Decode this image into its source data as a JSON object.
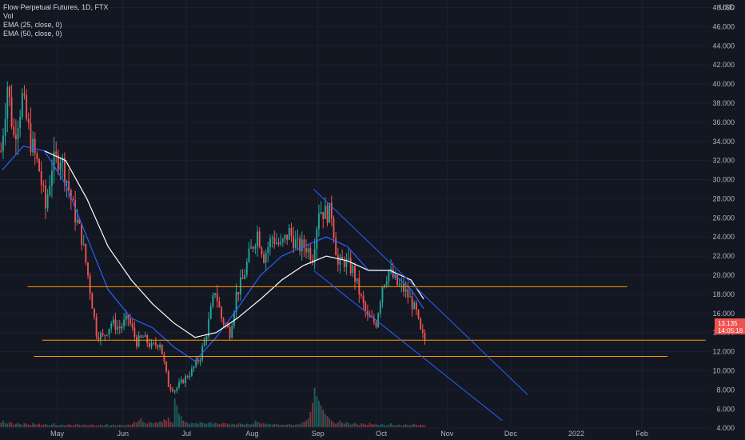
{
  "legend": {
    "title": "Flow Perpetual Futures, 1D, FTX",
    "vol": "Vol",
    "ema1": "EMA (25, close, 0)",
    "ema2": "EMA (50, close, 0)"
  },
  "colors": {
    "background": "#131722",
    "up": "#26a69a",
    "down": "#ef5350",
    "ema_fast": "#2962ff",
    "ema_slow": "#ffffff",
    "channel": "#2962ff",
    "level": "#ff9800",
    "axis_text": "#b2b5be"
  },
  "price_tag": {
    "price": "13.135",
    "countdown": "14:05:18"
  },
  "chart_data": {
    "type": "candlestick",
    "title": "Flow Perpetual Futures, 1D, FTX",
    "y_axis": {
      "unit": "USD",
      "range": [
        2.8,
        48.0
      ],
      "ticks": [
        "48.000",
        "46.000",
        "44.000",
        "42.000",
        "40.000",
        "38.000",
        "36.000",
        "34.000",
        "32.000",
        "30.000",
        "28.000",
        "26.000",
        "24.000",
        "22.000",
        "20.000",
        "18.000",
        "16.000",
        "14.000",
        "12.000",
        "10.000",
        "8.000",
        "6.000",
        "4.000"
      ]
    },
    "x_axis": {
      "range": [
        "2021-04-04",
        "2022-03-05"
      ],
      "ticks": [
        {
          "label": "May",
          "date": "2021-05-01"
        },
        {
          "label": "Jun",
          "date": "2021-06-01"
        },
        {
          "label": "Jul",
          "date": "2021-07-01"
        },
        {
          "label": "Aug",
          "date": "2021-08-01"
        },
        {
          "label": "Sep",
          "date": "2021-09-01"
        },
        {
          "label": "Oct",
          "date": "2021-10-01"
        },
        {
          "label": "Nov",
          "date": "2021-11-01"
        },
        {
          "label": "Dec",
          "date": "2021-12-01"
        },
        {
          "label": "2022",
          "date": "2022-01-01"
        },
        {
          "label": "Feb",
          "date": "2022-02-01"
        }
      ]
    },
    "close_path": [
      [
        "2021-04-04",
        33.0
      ],
      [
        "2021-04-07",
        40.0
      ],
      [
        "2021-04-10",
        34.5
      ],
      [
        "2021-04-14",
        38.5
      ],
      [
        "2021-04-18",
        34.0
      ],
      [
        "2021-04-22",
        31.0
      ],
      [
        "2021-04-25",
        27.0
      ],
      [
        "2021-04-28",
        31.5
      ],
      [
        "2021-05-02",
        32.5
      ],
      [
        "2021-05-05",
        30.0
      ],
      [
        "2021-05-08",
        27.0
      ],
      [
        "2021-05-12",
        24.0
      ],
      [
        "2021-05-15",
        20.0
      ],
      [
        "2021-05-19",
        14.0
      ],
      [
        "2021-05-22",
        13.5
      ],
      [
        "2021-05-26",
        15.0
      ],
      [
        "2021-05-30",
        14.5
      ],
      [
        "2021-06-03",
        15.5
      ],
      [
        "2021-06-07",
        13.0
      ],
      [
        "2021-06-10",
        13.5
      ],
      [
        "2021-06-14",
        12.5
      ],
      [
        "2021-06-18",
        13.0
      ],
      [
        "2021-06-22",
        8.5
      ],
      [
        "2021-06-25",
        8.0
      ],
      [
        "2021-06-29",
        9.0
      ],
      [
        "2021-07-03",
        10.0
      ],
      [
        "2021-07-07",
        11.5
      ],
      [
        "2021-07-10",
        14.0
      ],
      [
        "2021-07-14",
        18.5
      ],
      [
        "2021-07-17",
        15.5
      ],
      [
        "2021-07-21",
        14.0
      ],
      [
        "2021-07-24",
        18.0
      ],
      [
        "2021-07-27",
        19.5
      ],
      [
        "2021-07-30",
        22.0
      ],
      [
        "2021-08-03",
        24.5
      ],
      [
        "2021-08-06",
        22.0
      ],
      [
        "2021-08-10",
        24.0
      ],
      [
        "2021-08-14",
        23.0
      ],
      [
        "2021-08-18",
        24.5
      ],
      [
        "2021-08-22",
        23.0
      ],
      [
        "2021-08-26",
        23.0
      ],
      [
        "2021-08-29",
        22.0
      ],
      [
        "2021-09-01",
        27.0
      ],
      [
        "2021-09-04",
        26.5
      ],
      [
        "2021-09-07",
        26.5
      ],
      [
        "2021-09-10",
        21.0
      ],
      [
        "2021-09-13",
        21.5
      ],
      [
        "2021-09-17",
        20.5
      ],
      [
        "2021-09-21",
        17.5
      ],
      [
        "2021-09-24",
        15.5
      ],
      [
        "2021-09-28",
        15.0
      ],
      [
        "2021-10-01",
        19.0
      ],
      [
        "2021-10-04",
        20.5
      ],
      [
        "2021-10-08",
        19.0
      ],
      [
        "2021-10-11",
        18.5
      ],
      [
        "2021-10-14",
        17.5
      ],
      [
        "2021-10-17",
        16.0
      ],
      [
        "2021-10-19",
        14.0
      ],
      [
        "2021-10-21",
        13.2
      ]
    ],
    "ema_25": [
      [
        "2021-04-05",
        31.0
      ],
      [
        "2021-04-15",
        33.5
      ],
      [
        "2021-04-25",
        33.0
      ],
      [
        "2021-05-05",
        29.5
      ],
      [
        "2021-05-15",
        24.0
      ],
      [
        "2021-05-25",
        18.5
      ],
      [
        "2021-06-05",
        15.5
      ],
      [
        "2021-06-15",
        14.5
      ],
      [
        "2021-06-25",
        12.5
      ],
      [
        "2021-07-05",
        11.0
      ],
      [
        "2021-07-15",
        13.5
      ],
      [
        "2021-07-25",
        16.5
      ],
      [
        "2021-08-05",
        20.0
      ],
      [
        "2021-08-15",
        22.0
      ],
      [
        "2021-08-25",
        23.0
      ],
      [
        "2021-09-05",
        24.0
      ],
      [
        "2021-09-15",
        23.0
      ],
      [
        "2021-09-25",
        20.5
      ],
      [
        "2021-10-05",
        20.5
      ],
      [
        "2021-10-15",
        18.5
      ],
      [
        "2021-10-21",
        16.5
      ]
    ],
    "ema_50": [
      [
        "2021-04-25",
        33.0
      ],
      [
        "2021-05-05",
        32.0
      ],
      [
        "2021-05-15",
        28.0
      ],
      [
        "2021-05-25",
        23.0
      ],
      [
        "2021-06-05",
        19.5
      ],
      [
        "2021-06-15",
        17.0
      ],
      [
        "2021-06-25",
        15.0
      ],
      [
        "2021-07-05",
        13.5
      ],
      [
        "2021-07-15",
        14.0
      ],
      [
        "2021-07-25",
        15.5
      ],
      [
        "2021-08-05",
        17.5
      ],
      [
        "2021-08-15",
        19.5
      ],
      [
        "2021-08-25",
        21.0
      ],
      [
        "2021-09-05",
        22.0
      ],
      [
        "2021-09-15",
        21.5
      ],
      [
        "2021-09-25",
        20.5
      ],
      [
        "2021-10-05",
        20.5
      ],
      [
        "2021-10-15",
        19.5
      ],
      [
        "2021-10-21",
        17.5
      ]
    ],
    "volume_relative": [
      0.1,
      0.15,
      0.1,
      0.08,
      0.12,
      0.1,
      0.06,
      0.08,
      0.1,
      0.07,
      0.05,
      0.09,
      0.08,
      0.06,
      0.05,
      0.1,
      0.07,
      0.06,
      0.08,
      0.05,
      0.06,
      0.07,
      0.05,
      0.04,
      0.06,
      0.09,
      0.05,
      0.04,
      0.05,
      0.06,
      0.04,
      0.05,
      0.07,
      0.05,
      0.04,
      0.06,
      0.08,
      0.05,
      0.04,
      0.06,
      0.05,
      0.04,
      0.05,
      0.06,
      0.04,
      0.03,
      0.05,
      0.06,
      0.04,
      0.05,
      0.07,
      0.04,
      0.05,
      0.06,
      0.04,
      0.05,
      0.06,
      0.05,
      0.04,
      0.05,
      0.06,
      0.05,
      0.08,
      0.12,
      0.1,
      0.15,
      0.2,
      0.12,
      0.1,
      0.08,
      0.12,
      0.1,
      0.09,
      0.11,
      0.1,
      0.13,
      0.12,
      0.18,
      0.15,
      0.22,
      0.12,
      0.1,
      0.65,
      0.5,
      0.3,
      0.25,
      0.15,
      0.12,
      0.1,
      0.08,
      0.1,
      0.09,
      0.1,
      0.08,
      0.12,
      0.1,
      0.09,
      0.08,
      0.1,
      0.11,
      0.08,
      0.1,
      0.09,
      0.07,
      0.08,
      0.1,
      0.09,
      0.08,
      0.06,
      0.08,
      0.07,
      0.06,
      0.09,
      0.08,
      0.07,
      0.06,
      0.08,
      0.07,
      0.06,
      0.08,
      0.15,
      0.12,
      0.1,
      0.08,
      0.09,
      0.07,
      0.08,
      0.07,
      0.06,
      0.08,
      0.07,
      0.06,
      0.05,
      0.06,
      0.05,
      0.06,
      0.07,
      0.06,
      0.05,
      0.06,
      0.07,
      0.06,
      0.1,
      0.12,
      0.15,
      0.2,
      0.35,
      0.55,
      0.9,
      0.7,
      0.6,
      0.5,
      0.4,
      0.3,
      0.25,
      0.2,
      0.15,
      0.1,
      0.08
    ],
    "drawings": {
      "horizontal_levels": [
        {
          "price": 18.8,
          "from": "2021-04-17",
          "to": "2022-01-25"
        },
        {
          "price": 13.2,
          "from": "2021-04-24",
          "to": "2022-03-03"
        },
        {
          "price": 11.5,
          "from": "2021-04-20",
          "to": "2022-02-13"
        }
      ],
      "channel_lines": [
        {
          "from": [
            "2021-08-30",
            29.0
          ],
          "to": [
            "2021-12-09",
            7.5
          ]
        },
        {
          "from": [
            "2021-08-30",
            20.5
          ],
          "to": [
            "2021-11-27",
            4.8
          ]
        }
      ]
    }
  }
}
